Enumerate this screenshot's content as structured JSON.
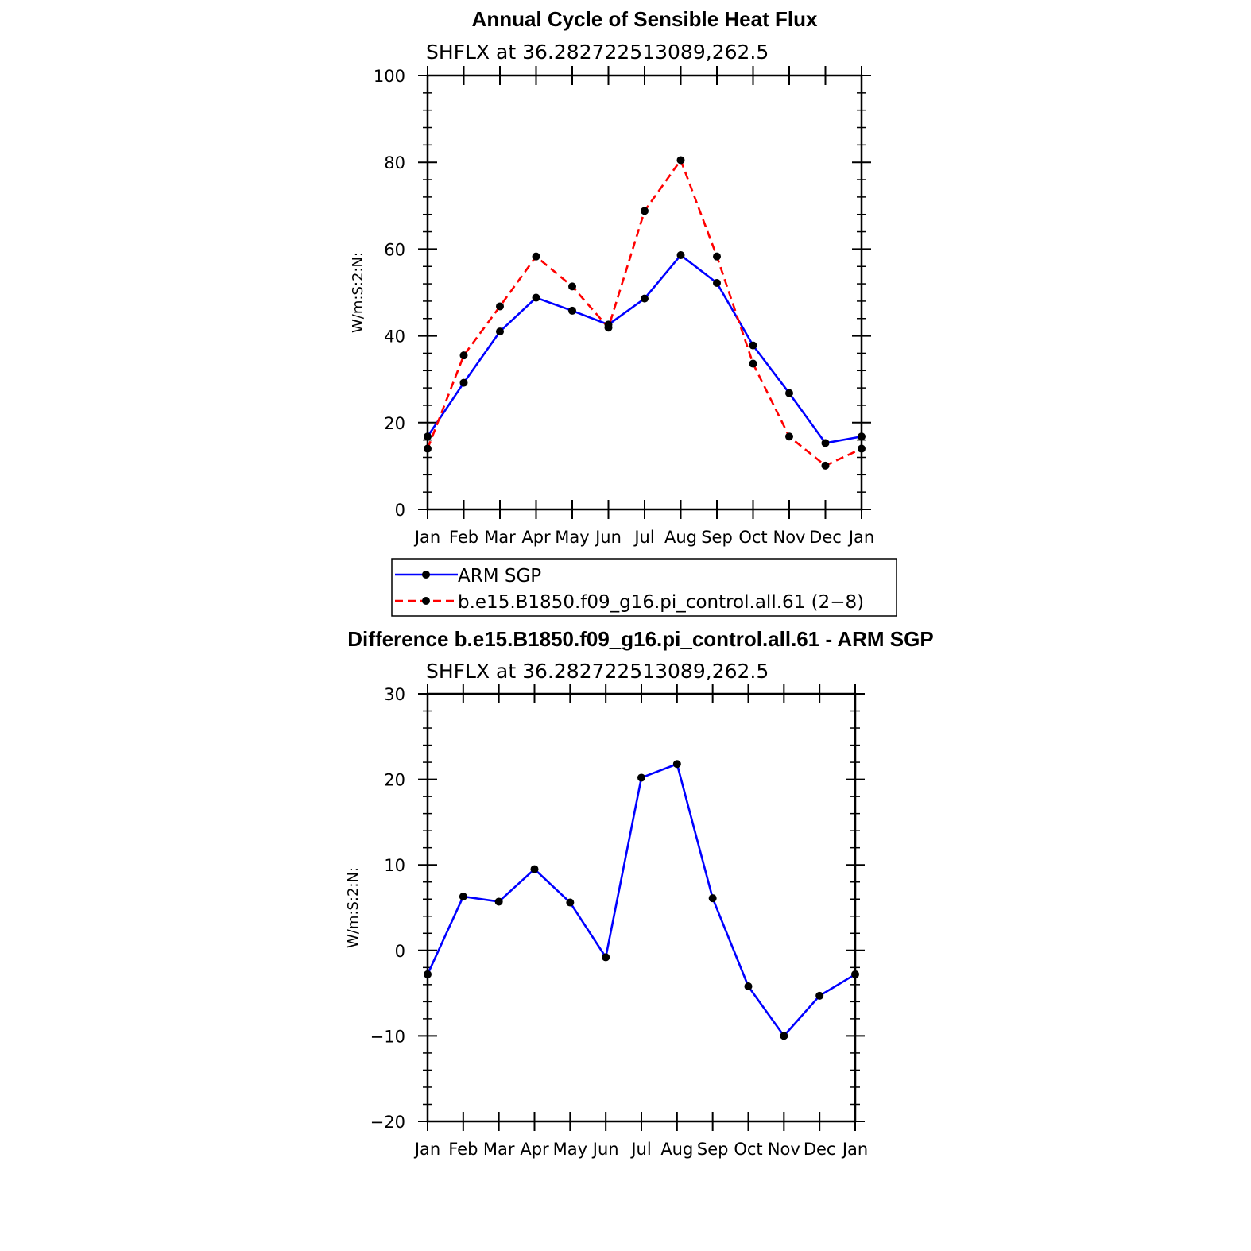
{
  "chart_data": [
    {
      "type": "line",
      "title": "Annual Cycle of Sensible Heat Flux",
      "subtitle": "SHFLX at 36.282722513089,262.5",
      "ylabel": "W/m:S:2:N:",
      "xlabel": "",
      "categories": [
        "Jan",
        "Feb",
        "Mar",
        "Apr",
        "May",
        "Jun",
        "Jul",
        "Aug",
        "Sep",
        "Oct",
        "Nov",
        "Dec",
        "Jan"
      ],
      "ylim": [
        0,
        100
      ],
      "yticks": [
        "0",
        "20",
        "40",
        "60",
        "80",
        "100"
      ],
      "series": [
        {
          "name": "ARM SGP",
          "color": "#0000ff",
          "dash": "solid",
          "values": [
            16.8,
            29.2,
            41.0,
            48.8,
            45.8,
            42.6,
            48.6,
            58.6,
            52.2,
            37.8,
            26.8,
            15.3,
            16.8
          ]
        },
        {
          "name": "b.e15.B1850.f09_g16.pi_control.all.61 (2−8)",
          "color": "#ff0000",
          "dash": "dashed",
          "values": [
            14.0,
            35.5,
            46.8,
            58.3,
            51.4,
            41.9,
            68.8,
            80.5,
            58.3,
            33.6,
            16.8,
            10.1,
            14.0
          ]
        }
      ],
      "legend": "below"
    },
    {
      "type": "line",
      "title": "Difference b.e15.B1850.f09_g16.pi_control.all.61 - ARM SGP",
      "subtitle": "SHFLX at 36.282722513089,262.5",
      "ylabel": "W/m:S:2:N:",
      "xlabel": "",
      "categories": [
        "Jan",
        "Feb",
        "Mar",
        "Apr",
        "May",
        "Jun",
        "Jul",
        "Aug",
        "Sep",
        "Oct",
        "Nov",
        "Dec",
        "Jan"
      ],
      "ylim": [
        -20,
        30
      ],
      "yticks": [
        "−20",
        "−10",
        "0",
        "10",
        "20",
        "30"
      ],
      "series": [
        {
          "color": "#0000ff",
          "dash": "solid",
          "values": [
            -2.8,
            6.3,
            5.7,
            9.5,
            5.6,
            -0.8,
            20.2,
            21.8,
            6.1,
            -4.2,
            -10.0,
            -5.3,
            -2.8
          ]
        }
      ]
    }
  ]
}
